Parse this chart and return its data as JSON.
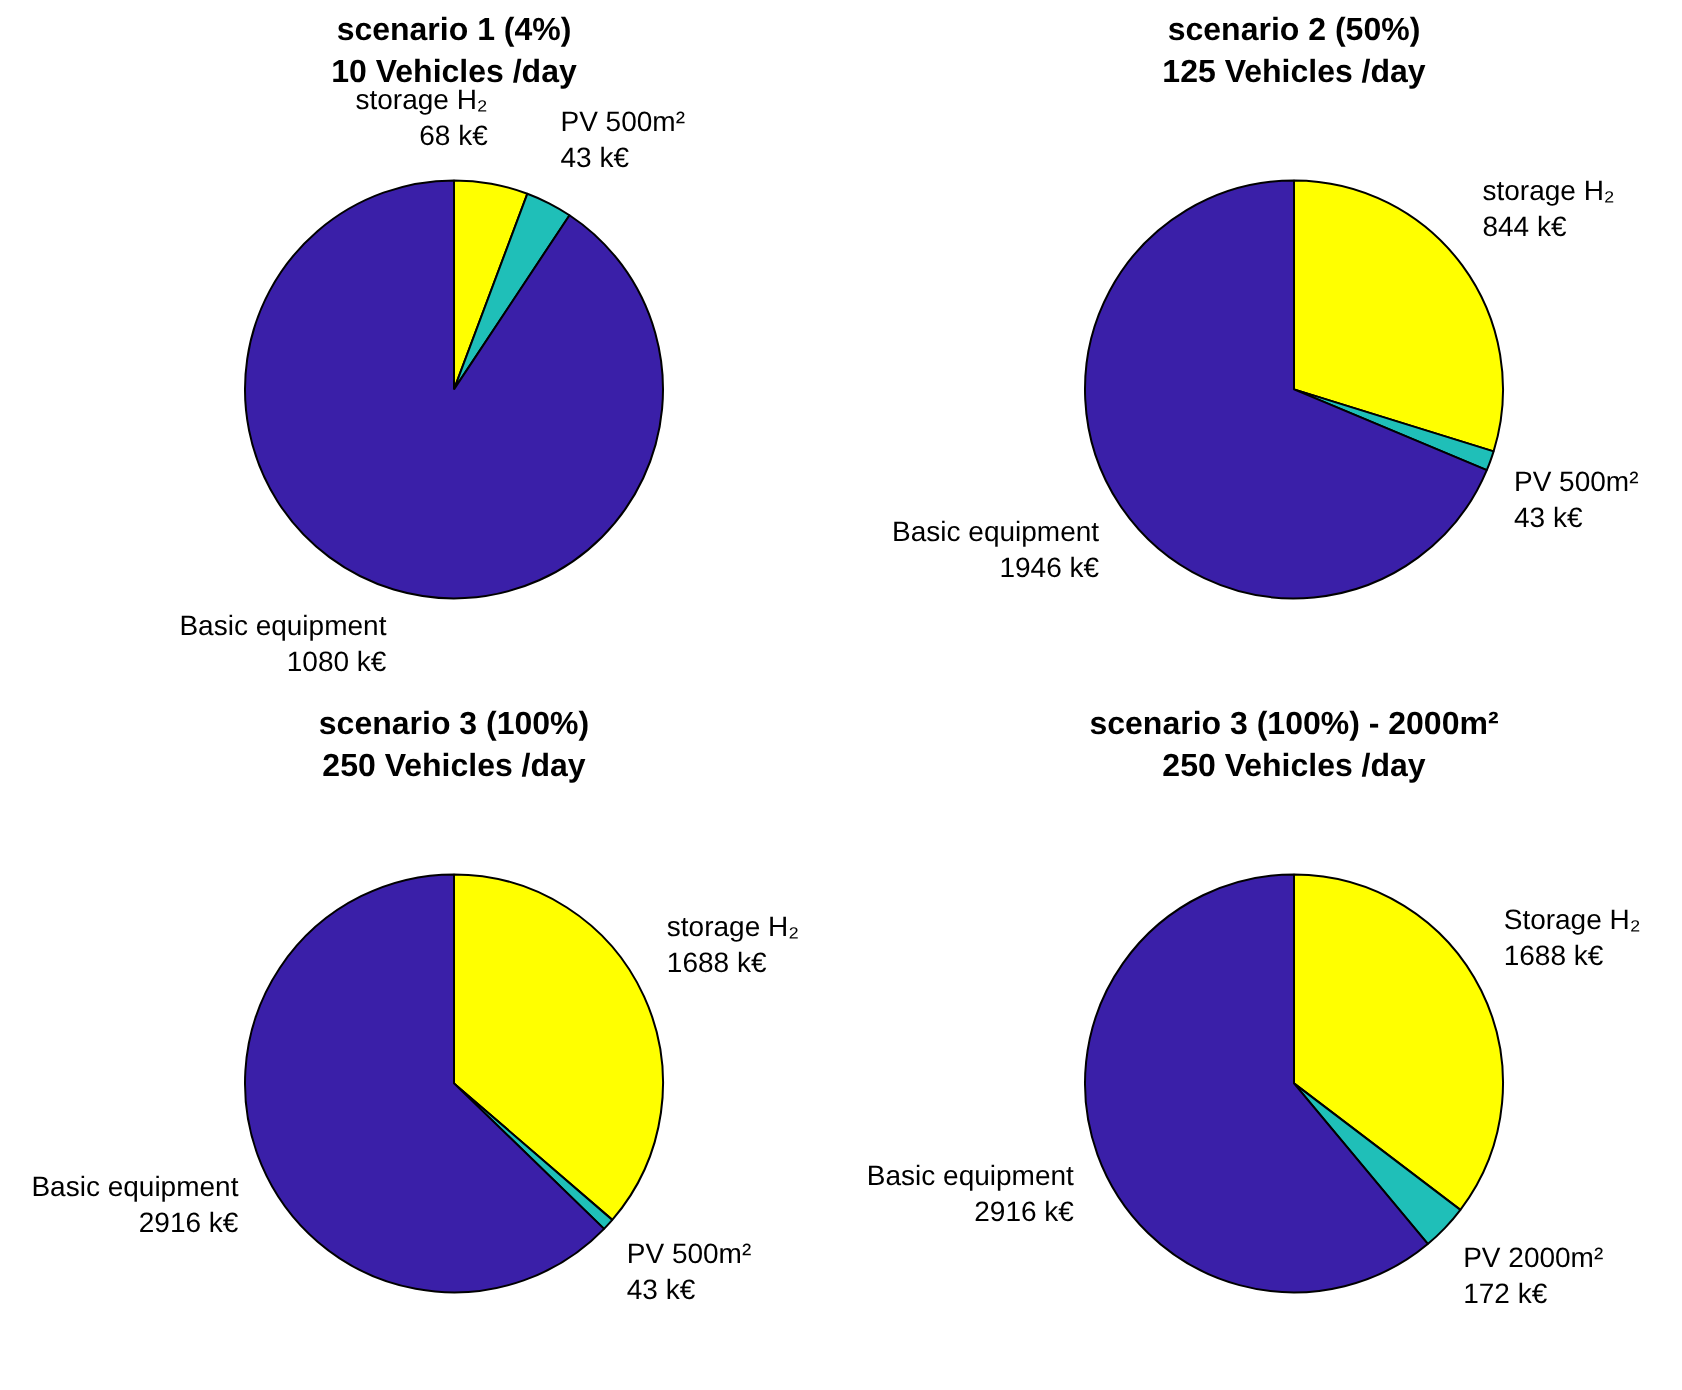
{
  "chart_data": [
    {
      "type": "pie",
      "title": "scenario 1 (4%)",
      "subtitle": "10 Vehicles /day",
      "categories": [
        "storage H₂",
        "PV 500m²",
        "Basic equipment"
      ],
      "values": [
        68,
        43,
        1080
      ],
      "value_labels": [
        "68 k€",
        "43 k€",
        "1080 k€"
      ],
      "colors": [
        "#ffff00",
        "#1fbfb8",
        "#3a1fa8"
      ]
    },
    {
      "type": "pie",
      "title": "scenario 2 (50%)",
      "subtitle": "125 Vehicles /day",
      "categories": [
        "storage H₂",
        "PV 500m²",
        "Basic equipment"
      ],
      "values": [
        844,
        43,
        1946
      ],
      "value_labels": [
        "844 k€",
        "43 k€",
        "1946 k€"
      ],
      "colors": [
        "#ffff00",
        "#1fbfb8",
        "#3a1fa8"
      ]
    },
    {
      "type": "pie",
      "title": "scenario 3 (100%)",
      "subtitle": "250 Vehicles /day",
      "categories": [
        "storage H₂",
        "PV 500m²",
        "Basic equipment"
      ],
      "values": [
        1688,
        43,
        2916
      ],
      "value_labels": [
        "1688 k€",
        "43 k€",
        "2916 k€"
      ],
      "colors": [
        "#ffff00",
        "#1fbfb8",
        "#3a1fa8"
      ]
    },
    {
      "type": "pie",
      "title": "scenario 3 (100%) - 2000m²",
      "subtitle": "250 Vehicles /day",
      "categories": [
        "Storage H₂",
        "PV 2000m²",
        "Basic equipment"
      ],
      "values": [
        1688,
        172,
        2916
      ],
      "value_labels": [
        "1688 k€",
        "172 k€",
        "2916 k€"
      ],
      "colors": [
        "#ffff00",
        "#1fbfb8",
        "#3a1fa8"
      ]
    }
  ]
}
